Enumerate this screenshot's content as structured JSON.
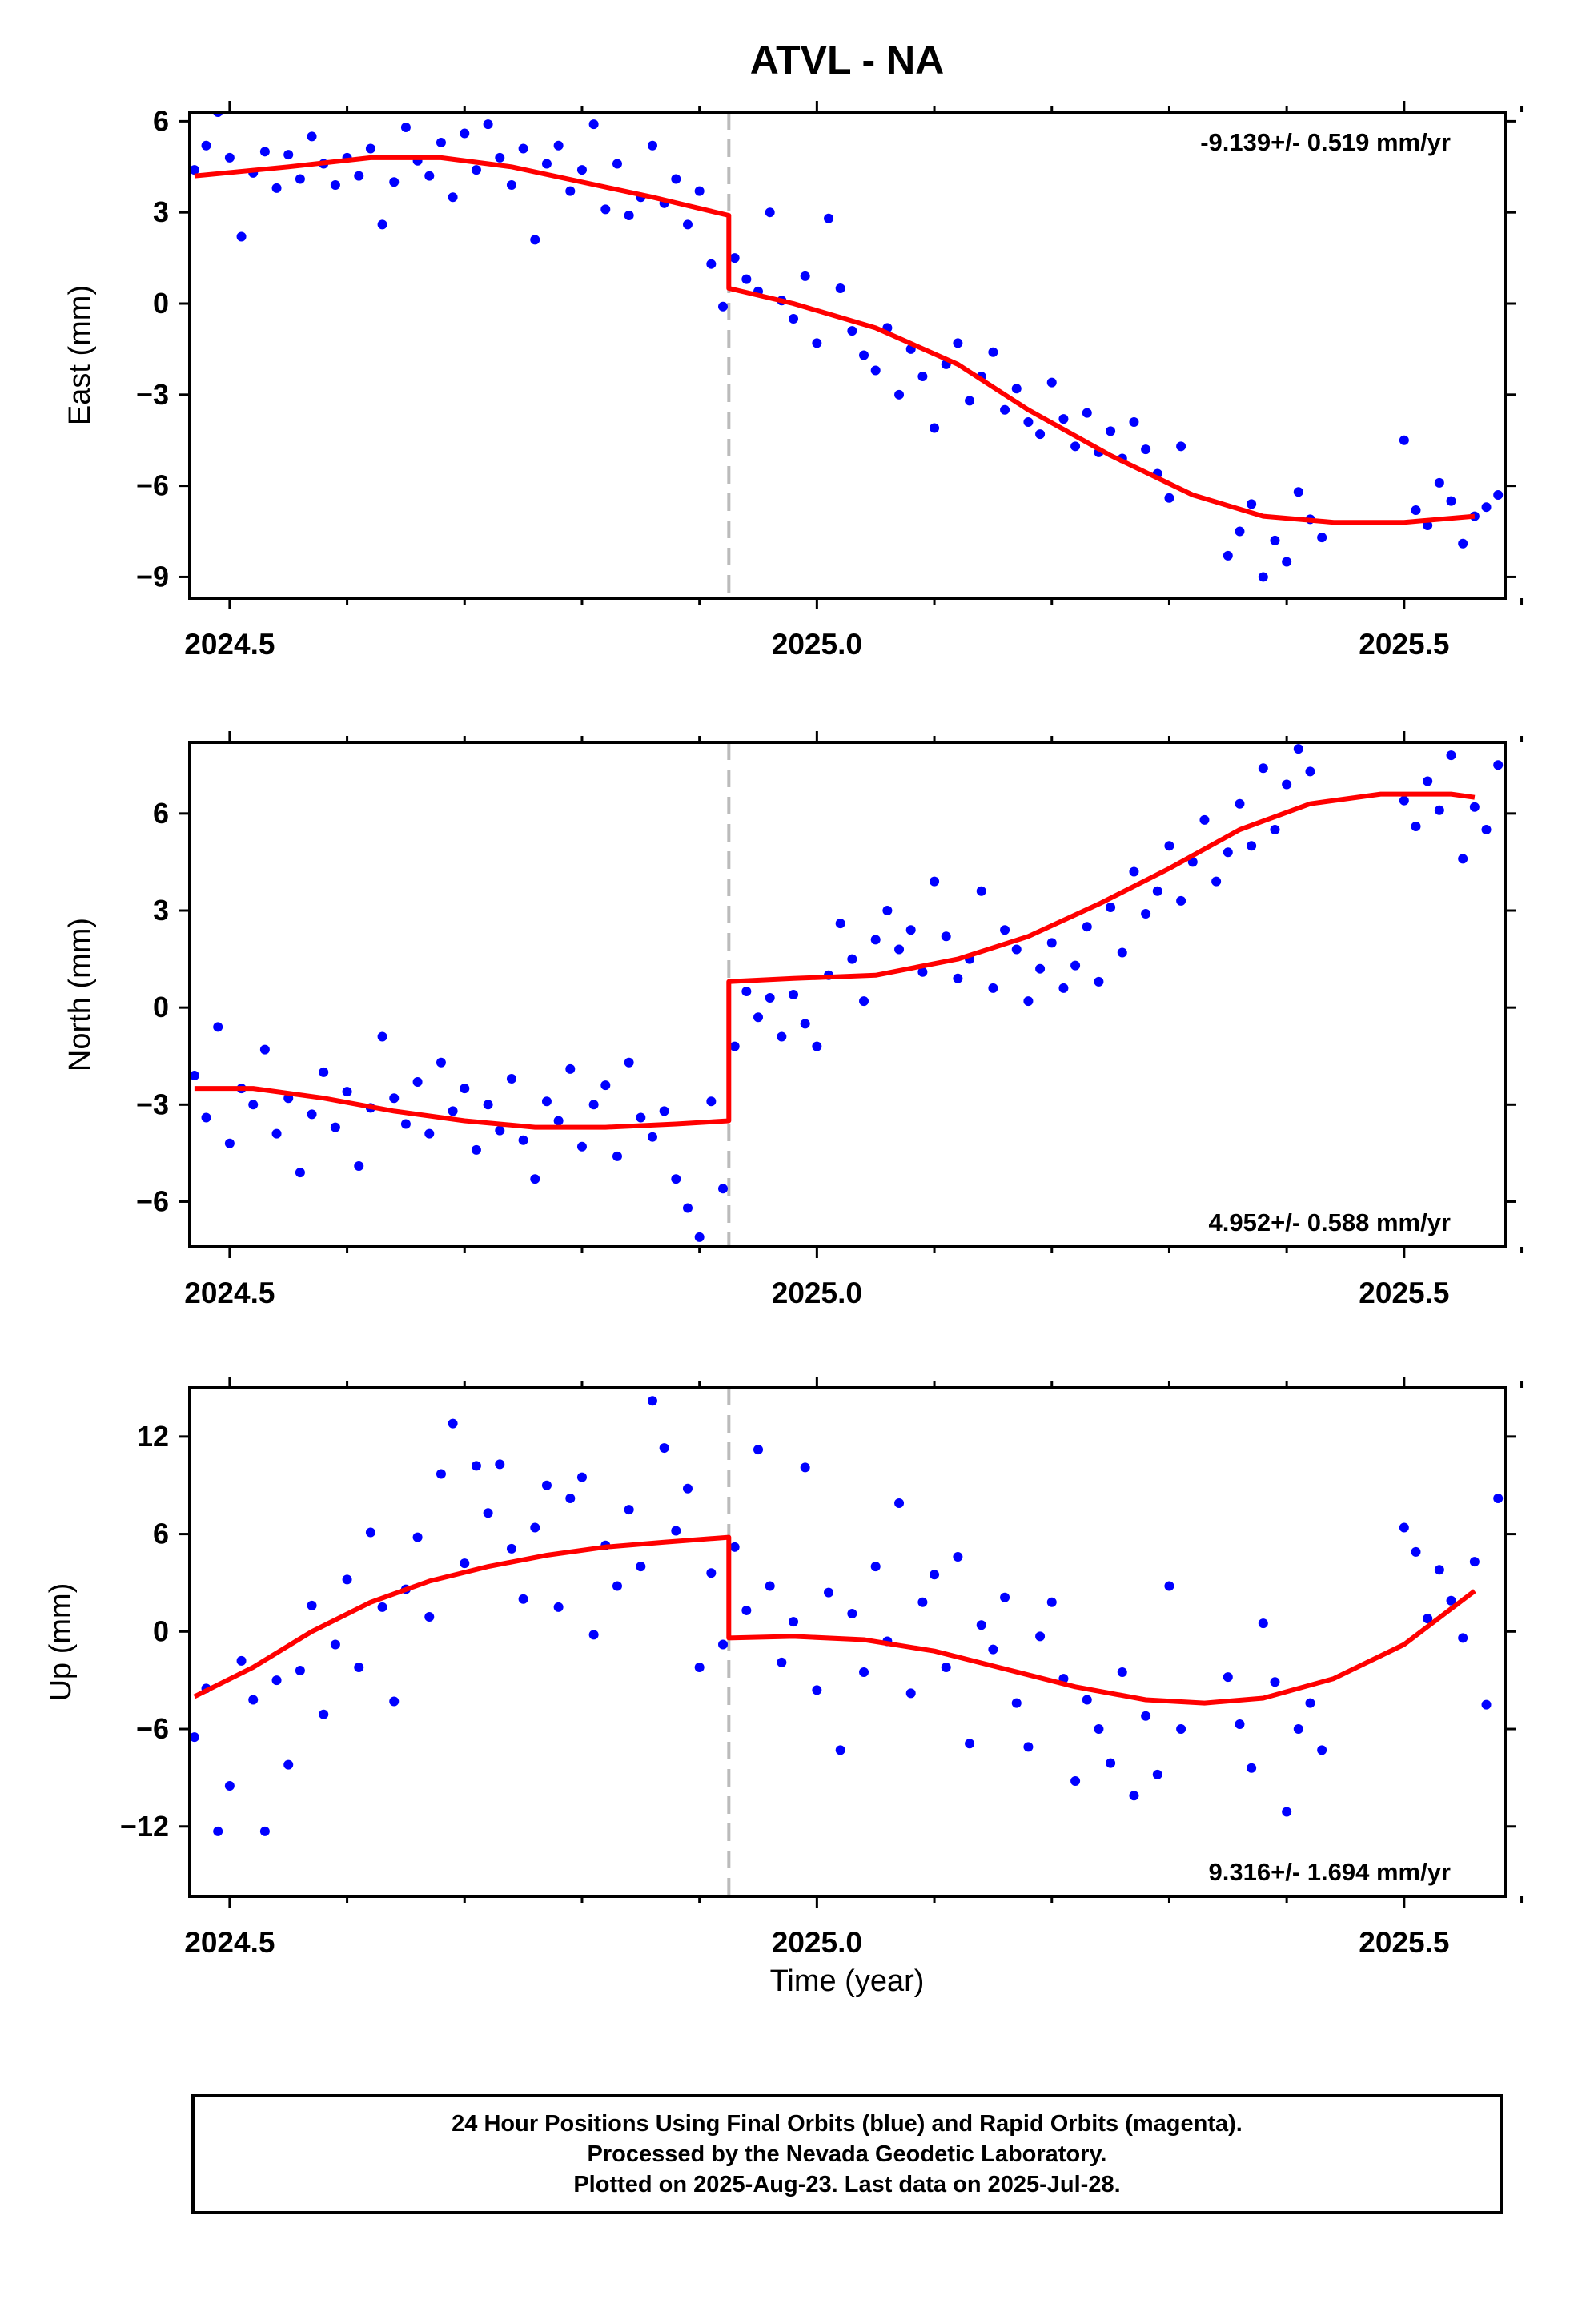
{
  "colors": {
    "final_orbits": "#0000ff",
    "model_fit": "#ff0000",
    "offset_line": "#bbbbbb",
    "axis": "#000000"
  },
  "chart_data": {
    "type": "scatter",
    "title": "ATVL - NA",
    "xlabel": "Time (year)",
    "xlim": [
      2024.466,
      2025.586
    ],
    "xticks": [
      2024.5,
      2025.0,
      2025.5
    ],
    "xtick_labels": [
      "2024.5",
      "2025.0",
      "2025.5"
    ],
    "offset_epoch": 2024.925,
    "panels": [
      {
        "id": "east",
        "ylabel": "East (mm)",
        "ylim": [
          -9.7,
          6.3
        ],
        "yticks": [
          6,
          3,
          0,
          -3,
          -6,
          -9
        ],
        "ytick_labels": [
          "6",
          "3",
          "0",
          "−3",
          "−6",
          "−9"
        ],
        "rate_label": "-9.139+/- 0.519 mm/yr",
        "rate_position": "top-right",
        "model_fit": {
          "x": [
            2024.47,
            2024.55,
            2024.62,
            2024.68,
            2024.74,
            2024.8,
            2024.86,
            2024.925,
            2024.925,
            2024.98,
            2025.05,
            2025.12,
            2025.18,
            2025.25,
            2025.32,
            2025.38,
            2025.44,
            2025.5,
            2025.56
          ],
          "y": [
            4.2,
            4.5,
            4.8,
            4.8,
            4.5,
            4.0,
            3.5,
            2.9,
            0.5,
            0.0,
            -0.8,
            -2.0,
            -3.5,
            -5.0,
            -6.3,
            -7.0,
            -7.2,
            -7.2,
            -7.0
          ]
        },
        "points": {
          "x": [
            2024.47,
            2024.48,
            2024.49,
            2024.5,
            2024.51,
            2024.52,
            2024.53,
            2024.54,
            2024.55,
            2024.56,
            2024.57,
            2024.58,
            2024.59,
            2024.6,
            2024.61,
            2024.62,
            2024.63,
            2024.64,
            2024.65,
            2024.66,
            2024.67,
            2024.68,
            2024.69,
            2024.7,
            2024.71,
            2024.72,
            2024.73,
            2024.74,
            2024.75,
            2024.76,
            2024.77,
            2024.78,
            2024.79,
            2024.8,
            2024.81,
            2024.82,
            2024.83,
            2024.84,
            2024.85,
            2024.86,
            2024.87,
            2024.88,
            2024.89,
            2024.9,
            2024.91,
            2024.92,
            2024.93,
            2024.94,
            2024.95,
            2024.96,
            2024.97,
            2024.98,
            2024.99,
            2025.0,
            2025.01,
            2025.02,
            2025.03,
            2025.04,
            2025.05,
            2025.06,
            2025.07,
            2025.08,
            2025.09,
            2025.1,
            2025.11,
            2025.12,
            2025.13,
            2025.14,
            2025.15,
            2025.16,
            2025.17,
            2025.18,
            2025.19,
            2025.2,
            2025.21,
            2025.22,
            2025.23,
            2025.24,
            2025.25,
            2025.26,
            2025.27,
            2025.28,
            2025.29,
            2025.3,
            2025.31,
            2025.35,
            2025.36,
            2025.37,
            2025.38,
            2025.39,
            2025.4,
            2025.41,
            2025.42,
            2025.43,
            2025.5,
            2025.51,
            2025.52,
            2025.53,
            2025.54,
            2025.55,
            2025.56,
            2025.57,
            2025.58
          ],
          "y": [
            4.4,
            5.2,
            6.3,
            4.8,
            2.2,
            4.3,
            5.0,
            3.8,
            4.9,
            4.1,
            5.5,
            4.6,
            3.9,
            4.8,
            4.2,
            5.1,
            2.6,
            4.0,
            5.8,
            4.7,
            4.2,
            5.3,
            3.5,
            5.6,
            4.4,
            5.9,
            4.8,
            3.9,
            5.1,
            2.1,
            4.6,
            5.2,
            3.7,
            4.4,
            5.9,
            3.1,
            4.6,
            2.9,
            3.5,
            5.2,
            3.3,
            4.1,
            2.6,
            3.7,
            1.3,
            -0.1,
            1.5,
            0.8,
            0.4,
            3.0,
            0.1,
            -0.5,
            0.9,
            -1.3,
            2.8,
            0.5,
            -0.9,
            -1.7,
            -2.2,
            -0.8,
            -3.0,
            -1.5,
            -2.4,
            -4.1,
            -2.0,
            -1.3,
            -3.2,
            -2.4,
            -1.6,
            -3.5,
            -2.8,
            -3.9,
            -4.3,
            -2.6,
            -3.8,
            -4.7,
            -3.6,
            -4.9,
            -4.2,
            -5.1,
            -3.9,
            -4.8,
            -5.6,
            -6.4,
            -4.7,
            -8.3,
            -7.5,
            -6.6,
            -9.0,
            -7.8,
            -8.5,
            -6.2,
            -7.1,
            -7.7,
            -4.5,
            -6.8,
            -7.3,
            -5.9,
            -6.5,
            -7.9,
            -7.0,
            -6.7,
            -6.3
          ]
        }
      },
      {
        "id": "north",
        "ylabel": "North (mm)",
        "ylim": [
          -7.4,
          8.2
        ],
        "yticks": [
          6,
          3,
          0,
          -3,
          -6
        ],
        "ytick_labels": [
          "6",
          "3",
          "0",
          "−3",
          "−6"
        ],
        "rate_label": "4.952+/- 0.588 mm/yr",
        "rate_position": "bottom-right",
        "model_fit": {
          "x": [
            2024.47,
            2024.52,
            2024.58,
            2024.64,
            2024.7,
            2024.76,
            2024.82,
            2024.88,
            2024.925,
            2024.925,
            2024.98,
            2025.05,
            2025.12,
            2025.18,
            2025.24,
            2025.3,
            2025.36,
            2025.42,
            2025.48,
            2025.54,
            2025.56
          ],
          "y": [
            -2.5,
            -2.5,
            -2.8,
            -3.2,
            -3.5,
            -3.7,
            -3.7,
            -3.6,
            -3.5,
            0.8,
            0.9,
            1.0,
            1.5,
            2.2,
            3.2,
            4.3,
            5.5,
            6.3,
            6.6,
            6.6,
            6.5
          ]
        },
        "points": {
          "x": [
            2024.47,
            2024.48,
            2024.49,
            2024.5,
            2024.51,
            2024.52,
            2024.53,
            2024.54,
            2024.55,
            2024.56,
            2024.57,
            2024.58,
            2024.59,
            2024.6,
            2024.61,
            2024.62,
            2024.63,
            2024.64,
            2024.65,
            2024.66,
            2024.67,
            2024.68,
            2024.69,
            2024.7,
            2024.71,
            2024.72,
            2024.73,
            2024.74,
            2024.75,
            2024.76,
            2024.77,
            2024.78,
            2024.79,
            2024.8,
            2024.81,
            2024.82,
            2024.83,
            2024.84,
            2024.85,
            2024.86,
            2024.87,
            2024.88,
            2024.89,
            2024.9,
            2024.91,
            2024.92,
            2024.93,
            2024.94,
            2024.95,
            2024.96,
            2024.97,
            2024.98,
            2024.99,
            2025.0,
            2025.01,
            2025.02,
            2025.03,
            2025.04,
            2025.05,
            2025.06,
            2025.07,
            2025.08,
            2025.09,
            2025.1,
            2025.11,
            2025.12,
            2025.13,
            2025.14,
            2025.15,
            2025.16,
            2025.17,
            2025.18,
            2025.19,
            2025.2,
            2025.21,
            2025.22,
            2025.23,
            2025.24,
            2025.25,
            2025.26,
            2025.27,
            2025.28,
            2025.29,
            2025.3,
            2025.31,
            2025.32,
            2025.33,
            2025.34,
            2025.35,
            2025.36,
            2025.37,
            2025.38,
            2025.39,
            2025.4,
            2025.41,
            2025.42,
            2025.5,
            2025.51,
            2025.52,
            2025.53,
            2025.54,
            2025.55,
            2025.56,
            2025.57,
            2025.58
          ],
          "y": [
            -2.1,
            -3.4,
            -0.6,
            -4.2,
            -2.5,
            -3.0,
            -1.3,
            -3.9,
            -2.8,
            -5.1,
            -3.3,
            -2.0,
            -3.7,
            -2.6,
            -4.9,
            -3.1,
            -0.9,
            -2.8,
            -3.6,
            -2.3,
            -3.9,
            -1.7,
            -3.2,
            -2.5,
            -4.4,
            -3.0,
            -3.8,
            -2.2,
            -4.1,
            -5.3,
            -2.9,
            -3.5,
            -1.9,
            -4.3,
            -3.0,
            -2.4,
            -4.6,
            -1.7,
            -3.4,
            -4.0,
            -3.2,
            -5.3,
            -6.2,
            -7.1,
            -2.9,
            -5.6,
            -1.2,
            0.5,
            -0.3,
            0.3,
            -0.9,
            0.4,
            -0.5,
            -1.2,
            1.0,
            2.6,
            1.5,
            0.2,
            2.1,
            3.0,
            1.8,
            2.4,
            1.1,
            3.9,
            2.2,
            0.9,
            1.5,
            3.6,
            0.6,
            2.4,
            1.8,
            0.2,
            1.2,
            2.0,
            0.6,
            1.3,
            2.5,
            0.8,
            3.1,
            1.7,
            4.2,
            2.9,
            3.6,
            5.0,
            3.3,
            4.5,
            5.8,
            3.9,
            4.8,
            6.3,
            5.0,
            7.4,
            5.5,
            6.9,
            8.0,
            7.3,
            6.4,
            5.6,
            7.0,
            6.1,
            7.8,
            4.6,
            6.2,
            5.5,
            7.5
          ]
        }
      },
      {
        "id": "up",
        "ylabel": "Up (mm)",
        "ylim": [
          -16.3,
          15.0
        ],
        "yticks": [
          12,
          6,
          0,
          -6,
          -12
        ],
        "ytick_labels": [
          "12",
          "6",
          "0",
          "−6",
          "−12"
        ],
        "rate_label": "9.316+/- 1.694 mm/yr",
        "rate_position": "bottom-right",
        "model_fit": {
          "x": [
            2024.47,
            2024.52,
            2024.57,
            2024.62,
            2024.67,
            2024.72,
            2024.77,
            2024.82,
            2024.87,
            2024.925,
            2024.925,
            2024.98,
            2025.04,
            2025.1,
            2025.16,
            2025.22,
            2025.28,
            2025.33,
            2025.38,
            2025.44,
            2025.5,
            2025.56
          ],
          "y": [
            -4.0,
            -2.2,
            0.0,
            1.8,
            3.1,
            4.0,
            4.7,
            5.2,
            5.5,
            5.8,
            -0.4,
            -0.3,
            -0.5,
            -1.2,
            -2.3,
            -3.4,
            -4.2,
            -4.4,
            -4.1,
            -2.9,
            -0.8,
            2.5
          ]
        },
        "points": {
          "x": [
            2024.47,
            2024.48,
            2024.49,
            2024.5,
            2024.51,
            2024.52,
            2024.53,
            2024.54,
            2024.55,
            2024.56,
            2024.57,
            2024.58,
            2024.59,
            2024.6,
            2024.61,
            2024.62,
            2024.63,
            2024.64,
            2024.65,
            2024.66,
            2024.67,
            2024.68,
            2024.69,
            2024.7,
            2024.71,
            2024.72,
            2024.73,
            2024.74,
            2024.75,
            2024.76,
            2024.77,
            2024.78,
            2024.79,
            2024.8,
            2024.81,
            2024.82,
            2024.83,
            2024.84,
            2024.85,
            2024.86,
            2024.87,
            2024.88,
            2024.89,
            2024.9,
            2024.91,
            2024.92,
            2024.93,
            2024.94,
            2024.95,
            2024.96,
            2024.97,
            2024.98,
            2024.99,
            2025.0,
            2025.01,
            2025.02,
            2025.03,
            2025.04,
            2025.05,
            2025.06,
            2025.07,
            2025.08,
            2025.09,
            2025.1,
            2025.11,
            2025.12,
            2025.13,
            2025.14,
            2025.15,
            2025.16,
            2025.17,
            2025.18,
            2025.19,
            2025.2,
            2025.21,
            2025.22,
            2025.23,
            2025.24,
            2025.25,
            2025.26,
            2025.27,
            2025.28,
            2025.29,
            2025.3,
            2025.31,
            2025.35,
            2025.36,
            2025.37,
            2025.38,
            2025.39,
            2025.4,
            2025.41,
            2025.42,
            2025.43,
            2025.5,
            2025.51,
            2025.52,
            2025.53,
            2025.54,
            2025.55,
            2025.56,
            2025.57,
            2025.58
          ],
          "y": [
            -6.5,
            -3.5,
            -12.3,
            -9.5,
            -1.8,
            -4.2,
            -12.3,
            -3.0,
            -8.2,
            -2.4,
            1.6,
            -5.1,
            -0.8,
            3.2,
            -2.2,
            6.1,
            1.5,
            -4.3,
            2.6,
            5.8,
            0.9,
            9.7,
            12.8,
            4.2,
            10.2,
            7.3,
            10.3,
            5.1,
            2.0,
            6.4,
            9.0,
            1.5,
            8.2,
            9.5,
            -0.2,
            5.3,
            2.8,
            7.5,
            4.0,
            14.2,
            11.3,
            6.2,
            8.8,
            -2.2,
            3.6,
            -0.8,
            5.2,
            1.3,
            11.2,
            2.8,
            -1.9,
            0.6,
            10.1,
            -3.6,
            2.4,
            -7.3,
            1.1,
            -2.5,
            4.0,
            -0.6,
            7.9,
            -3.8,
            1.8,
            3.5,
            -2.2,
            4.6,
            -6.9,
            0.4,
            -1.1,
            2.1,
            -4.4,
            -7.1,
            -0.3,
            1.8,
            -2.9,
            -9.2,
            -4.2,
            -6.0,
            -8.1,
            -2.5,
            -10.1,
            -5.2,
            -8.8,
            2.8,
            -6.0,
            -2.8,
            -5.7,
            -8.4,
            0.5,
            -3.1,
            -11.1,
            -6.0,
            -4.4,
            -7.3,
            6.4,
            4.9,
            0.8,
            3.8,
            1.9,
            -0.4,
            4.3,
            -4.5,
            8.2
          ]
        }
      }
    ]
  },
  "footer": {
    "line1": "24 Hour Positions Using Final Orbits (blue) and Rapid Orbits (magenta).",
    "line2": "Processed by the Nevada Geodetic Laboratory.",
    "line3": "Plotted on 2025-Aug-23. Last data on 2025-Jul-28."
  }
}
